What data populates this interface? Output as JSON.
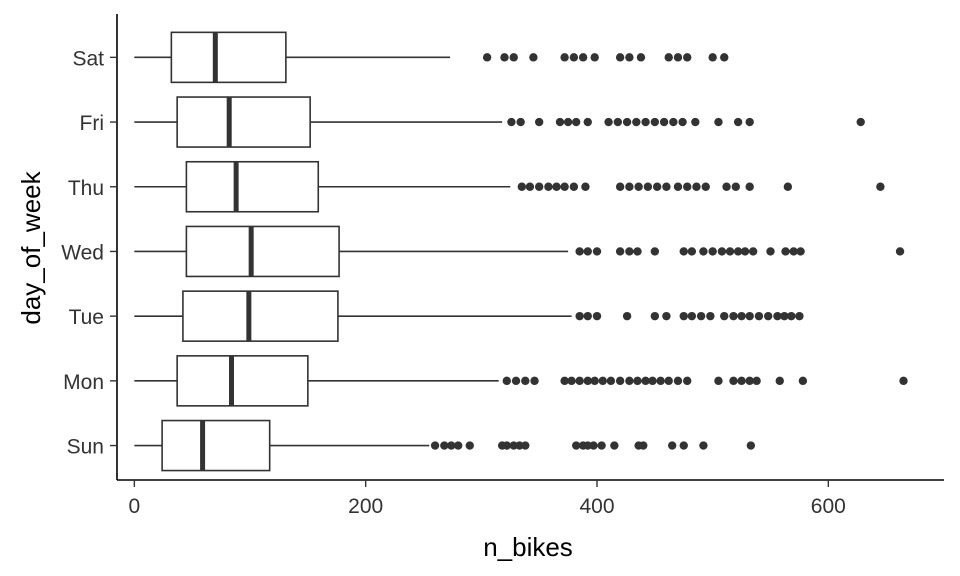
{
  "chart_data": {
    "type": "boxplot",
    "orientation": "horizontal",
    "xlabel": "n_bikes",
    "ylabel": "day_of_week",
    "xlim": [
      -15,
      700
    ],
    "x_ticks": [
      0,
      200,
      400,
      600
    ],
    "grid": false,
    "categories": [
      "Sun",
      "Mon",
      "Tue",
      "Wed",
      "Thu",
      "Fri",
      "Sat"
    ],
    "boxes": [
      {
        "category": "Sun",
        "min": 0,
        "q1": 24,
        "median": 59,
        "q3": 117,
        "max": 255,
        "outliers": [
          260,
          268,
          274,
          280,
          290,
          318,
          322,
          328,
          333,
          338,
          382,
          388,
          392,
          397,
          404,
          415,
          436,
          440,
          465,
          475,
          492,
          533
        ]
      },
      {
        "category": "Mon",
        "min": 0,
        "q1": 37,
        "median": 84,
        "q3": 150,
        "max": 315,
        "outliers": [
          322,
          330,
          338,
          346,
          372,
          378,
          385,
          392,
          398,
          405,
          412,
          420,
          428,
          435,
          442,
          448,
          455,
          462,
          470,
          478,
          505,
          518,
          525,
          532,
          538,
          558,
          578,
          665
        ]
      },
      {
        "category": "Tue",
        "min": 0,
        "q1": 42,
        "median": 99,
        "q3": 176,
        "max": 378,
        "outliers": [
          385,
          392,
          400,
          426,
          450,
          460,
          475,
          482,
          490,
          498,
          510,
          518,
          525,
          532,
          540,
          548,
          556,
          562,
          568,
          575
        ]
      },
      {
        "category": "Wed",
        "min": 0,
        "q1": 45,
        "median": 101,
        "q3": 177,
        "max": 375,
        "outliers": [
          385,
          392,
          400,
          420,
          428,
          435,
          450,
          475,
          482,
          492,
          500,
          508,
          515,
          522,
          528,
          535,
          550,
          563,
          570,
          576,
          662
        ]
      },
      {
        "category": "Thu",
        "min": 0,
        "q1": 45,
        "median": 88,
        "q3": 159,
        "max": 325,
        "outliers": [
          335,
          342,
          350,
          358,
          365,
          372,
          380,
          390,
          420,
          428,
          436,
          444,
          452,
          460,
          470,
          478,
          486,
          494,
          512,
          520,
          532,
          565,
          645
        ]
      },
      {
        "category": "Fri",
        "min": 0,
        "q1": 37,
        "median": 82,
        "q3": 152,
        "max": 318,
        "outliers": [
          326,
          334,
          350,
          368,
          375,
          382,
          392,
          410,
          418,
          426,
          434,
          442,
          450,
          458,
          466,
          474,
          485,
          505,
          522,
          532,
          628
        ]
      },
      {
        "category": "Sat",
        "min": 0,
        "q1": 32,
        "median": 70,
        "q3": 131,
        "max": 273,
        "outliers": [
          305,
          320,
          328,
          345,
          372,
          380,
          388,
          398,
          420,
          428,
          438,
          462,
          470,
          478,
          500,
          510
        ]
      }
    ]
  }
}
